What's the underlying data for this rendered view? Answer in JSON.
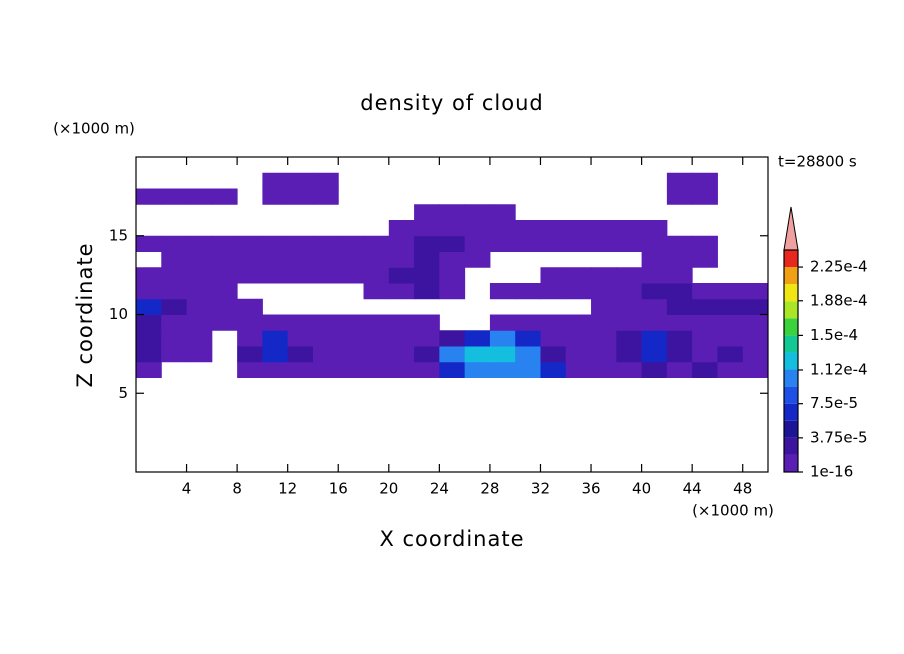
{
  "chart_data": {
    "type": "contour",
    "title": "density of cloud",
    "x_label": "X coordinate",
    "y_label": "Z coordinate",
    "x_unit": "(×1000 m)",
    "y_unit": "(×1000 m)",
    "time_label": "t=28800 s",
    "xlim": [
      0,
      50
    ],
    "ylim": [
      0,
      20
    ],
    "xticks": [
      4,
      8,
      12,
      16,
      20,
      24,
      28,
      32,
      36,
      40,
      44,
      48
    ],
    "yticks": [
      5,
      10,
      15
    ],
    "x_edges": [
      0,
      2,
      4,
      6,
      8,
      10,
      12,
      14,
      16,
      18,
      20,
      22,
      24,
      26,
      28,
      30,
      32,
      34,
      36,
      38,
      40,
      42,
      44,
      46,
      48,
      50
    ],
    "z_edges": [
      6,
      7,
      8,
      9,
      10,
      11,
      12,
      13,
      14,
      15,
      16,
      17,
      18,
      19
    ],
    "field": [
      [
        1e-05,
        null,
        null,
        null,
        1e-05,
        1e-05,
        1e-05,
        1e-05,
        1e-05,
        1e-05,
        1e-05,
        1e-05,
        6e-05,
        0.0001,
        0.0001,
        0.0001,
        6e-05,
        1e-05,
        1e-05,
        1e-05,
        3e-05,
        1e-05,
        3e-05,
        1e-05,
        1e-05
      ],
      [
        3e-05,
        1e-05,
        1e-05,
        null,
        3e-05,
        6e-05,
        3e-05,
        1e-05,
        1e-05,
        1e-05,
        1e-05,
        3e-05,
        0.0001,
        0.00013,
        0.00013,
        0.0001,
        3e-05,
        1e-05,
        1e-05,
        3e-05,
        6e-05,
        3e-05,
        1e-05,
        3e-05,
        1e-05
      ],
      [
        3e-05,
        1e-05,
        1e-05,
        null,
        1e-05,
        6e-05,
        1e-05,
        1e-05,
        1e-05,
        1e-05,
        1e-05,
        1e-05,
        3e-05,
        6e-05,
        0.0001,
        6e-05,
        1e-05,
        1e-05,
        1e-05,
        3e-05,
        6e-05,
        3e-05,
        1e-05,
        1e-05,
        1e-05
      ],
      [
        3e-05,
        1e-05,
        1e-05,
        1e-05,
        1e-05,
        1e-05,
        1e-05,
        1e-05,
        1e-05,
        1e-05,
        1e-05,
        1e-05,
        null,
        null,
        1e-05,
        1e-05,
        1e-05,
        1e-05,
        1e-05,
        1e-05,
        1e-05,
        1e-05,
        1e-05,
        1e-05,
        1e-05
      ],
      [
        6e-05,
        3e-05,
        1e-05,
        1e-05,
        1e-05,
        null,
        null,
        null,
        null,
        null,
        null,
        null,
        null,
        null,
        null,
        null,
        null,
        null,
        1e-05,
        1e-05,
        1e-05,
        3e-05,
        3e-05,
        3e-05,
        3e-05
      ],
      [
        1e-05,
        1e-05,
        1e-05,
        1e-05,
        null,
        null,
        null,
        null,
        null,
        1e-05,
        1e-05,
        3e-05,
        1e-05,
        null,
        1e-05,
        1e-05,
        1e-05,
        1e-05,
        1e-05,
        1e-05,
        3e-05,
        3e-05,
        1e-05,
        1e-05,
        1e-05
      ],
      [
        1e-05,
        1e-05,
        1e-05,
        1e-05,
        1e-05,
        1e-05,
        1e-05,
        1e-05,
        1e-05,
        1e-05,
        3e-05,
        3e-05,
        1e-05,
        null,
        null,
        null,
        1e-05,
        1e-05,
        1e-05,
        1e-05,
        1e-05,
        1e-05,
        null,
        null,
        null
      ],
      [
        null,
        1e-05,
        1e-05,
        1e-05,
        1e-05,
        1e-05,
        1e-05,
        1e-05,
        1e-05,
        1e-05,
        1e-05,
        3e-05,
        1e-05,
        1e-05,
        null,
        null,
        null,
        null,
        null,
        null,
        1e-05,
        1e-05,
        1e-05,
        null,
        null
      ],
      [
        1e-05,
        1e-05,
        1e-05,
        1e-05,
        1e-05,
        1e-05,
        1e-05,
        1e-05,
        1e-05,
        1e-05,
        1e-05,
        3e-05,
        3e-05,
        1e-05,
        1e-05,
        1e-05,
        1e-05,
        1e-05,
        1e-05,
        1e-05,
        1e-05,
        1e-05,
        1e-05,
        null,
        null
      ],
      [
        null,
        null,
        null,
        null,
        null,
        null,
        null,
        null,
        null,
        null,
        1e-05,
        1e-05,
        1e-05,
        1e-05,
        1e-05,
        1e-05,
        1e-05,
        1e-05,
        1e-05,
        1e-05,
        1e-05,
        null,
        null,
        null,
        null
      ],
      [
        null,
        null,
        null,
        null,
        null,
        null,
        null,
        null,
        null,
        null,
        null,
        1e-05,
        1e-05,
        1e-05,
        1e-05,
        null,
        null,
        null,
        null,
        null,
        null,
        null,
        null,
        null,
        null
      ],
      [
        1e-05,
        1e-05,
        1e-05,
        1e-05,
        null,
        1e-05,
        1e-05,
        1e-05,
        null,
        null,
        null,
        null,
        null,
        null,
        null,
        null,
        null,
        null,
        null,
        null,
        null,
        1e-05,
        1e-05,
        null,
        null
      ],
      [
        null,
        null,
        null,
        null,
        null,
        1e-05,
        1e-05,
        1e-05,
        null,
        null,
        null,
        null,
        null,
        null,
        null,
        null,
        null,
        null,
        null,
        null,
        null,
        1e-05,
        1e-05,
        null,
        null
      ]
    ],
    "clim": [
      1e-16,
      0.00024375
    ],
    "colors": [
      "#5a1eb4",
      "#3c14a0",
      "#1e1496",
      "#1428c8",
      "#1e50e6",
      "#2882f0",
      "#14bede",
      "#14c896",
      "#3cd23c",
      "#aae628",
      "#f0e614",
      "#f0a014",
      "#e6281e"
    ],
    "extend_color": "#f0a0a0",
    "cticks": [
      {
        "value": 1e-16,
        "label": "1e-16"
      },
      {
        "value": 3.75e-05,
        "label": "3.75e-5"
      },
      {
        "value": 7.5e-05,
        "label": "7.5e-5"
      },
      {
        "value": 0.000112,
        "label": "1.12e-4"
      },
      {
        "value": 0.00015,
        "label": "1.5e-4"
      },
      {
        "value": 0.000188,
        "label": "1.88e-4"
      },
      {
        "value": 0.000225,
        "label": "2.25e-4"
      }
    ]
  }
}
